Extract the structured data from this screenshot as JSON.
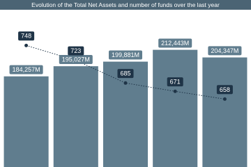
{
  "chart_data": {
    "type": "bar-line",
    "title": "Evolution of the Total Net Assets and number of funds over the last year",
    "categories": [
      null,
      null,
      null,
      null,
      null
    ],
    "series": [
      {
        "type": "bar",
        "color": "#607d8e",
        "values": [
          184257,
          195027,
          199881,
          212443,
          204347
        ],
        "value_labels": [
          "184,257M",
          "195,027M",
          "199,881M",
          "212,443M",
          "204,347M"
        ]
      },
      {
        "type": "line",
        "axis": "y2",
        "color": "#1f3447",
        "values": [
          748,
          723,
          685,
          671,
          658
        ]
      }
    ],
    "ylim": [
      88000,
      255000
    ],
    "y2lim": [
      544,
      808
    ]
  }
}
